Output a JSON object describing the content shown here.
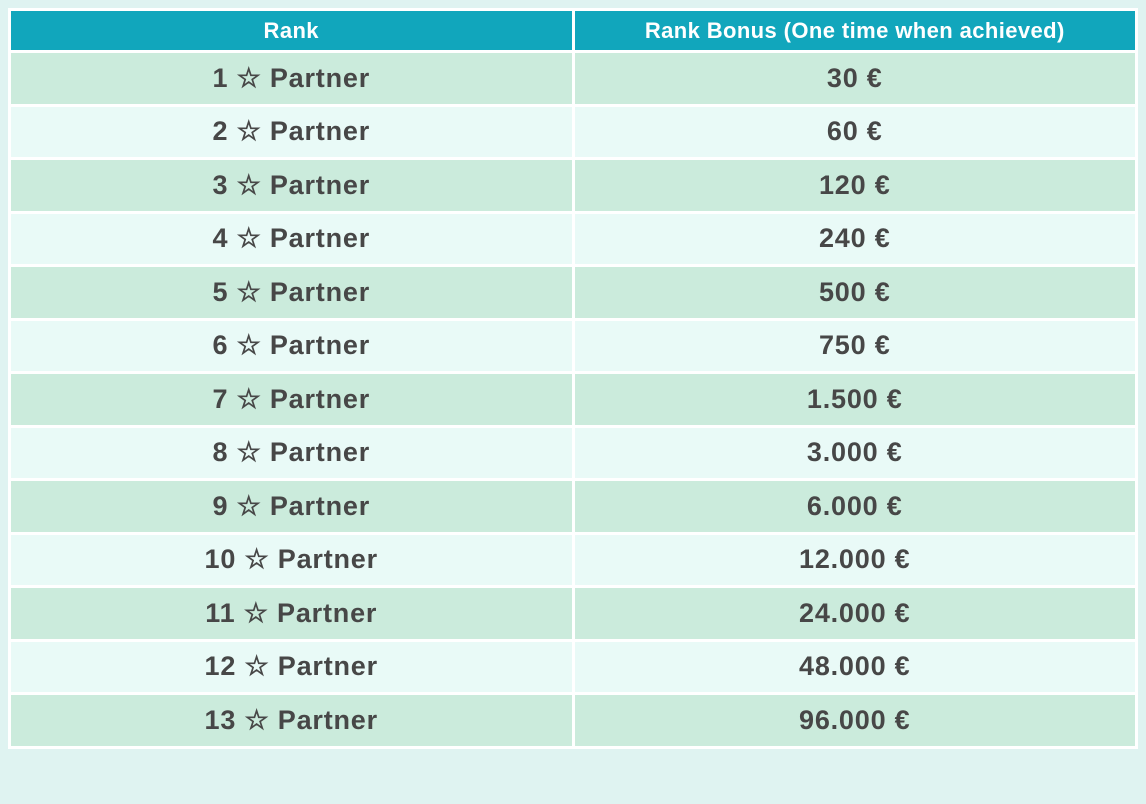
{
  "table": {
    "name": "rank-bonus-table",
    "columns": [
      {
        "label": "Rank"
      },
      {
        "label": "Rank Bonus (One time when achieved)"
      }
    ],
    "rows": [
      {
        "rank": "1 ☆ Partner",
        "bonus": "30 €"
      },
      {
        "rank": "2 ☆ Partner",
        "bonus": "60 €"
      },
      {
        "rank": "3 ☆ Partner",
        "bonus": "120 €"
      },
      {
        "rank": "4 ☆ Partner",
        "bonus": "240 €"
      },
      {
        "rank": "5 ☆ Partner",
        "bonus": "500 €"
      },
      {
        "rank": "6 ☆ Partner",
        "bonus": "750 €"
      },
      {
        "rank": "7 ☆ Partner",
        "bonus": "1.500 €"
      },
      {
        "rank": "8 ☆ Partner",
        "bonus": "3.000 €"
      },
      {
        "rank": "9 ☆ Partner",
        "bonus": "6.000 €"
      },
      {
        "rank": "10 ☆ Partner",
        "bonus": "12.000 €"
      },
      {
        "rank": "11 ☆ Partner",
        "bonus": "24.000 €"
      },
      {
        "rank": "12 ☆ Partner",
        "bonus": "48.000 €"
      },
      {
        "rank": "13 ☆ Partner",
        "bonus": "96.000 €"
      }
    ],
    "star_icon": "☆",
    "currency_symbol": "€"
  },
  "colors": {
    "header_background": "#11A6BC",
    "header_text": "#FFFFFF",
    "row_green": "#CBEBDC",
    "row_light": "#E9FAF7",
    "cell_border": "#FFFFFF",
    "page_background": "#DFF3F1",
    "body_text": "#474747"
  }
}
